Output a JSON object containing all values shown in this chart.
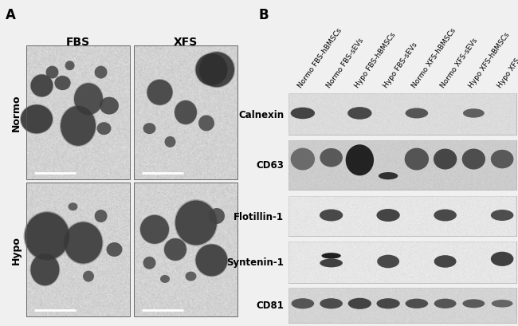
{
  "panel_A_label": "A",
  "panel_B_label": "B",
  "fbs_label": "FBS",
  "xfs_label": "XFS",
  "normo_label": "Normo",
  "hypo_label": "Hypo",
  "col_labels": [
    "Normo FBS-hBMSCs",
    "Normo FBS-sEVs",
    "Hypo FBS-hBMSCs",
    "Hypo FBS-sEVs",
    "Normo XFS-hBMSCs",
    "Normo XFS-sEVs",
    "Hypo XFS-hBMSCs",
    "Hypo XFS-sEVs"
  ],
  "row_labels": [
    "Calnexin",
    "CD63",
    "Flotillin-1",
    "Syntenin-1",
    "CD81"
  ],
  "bg_color": "#f0f0f0",
  "panel_label_fontsize": 12,
  "col_label_fontsize": 6.5,
  "row_label_fontsize": 8.5,
  "em_bg_mean": 0.82,
  "em_bg_std": 0.055,
  "vesicle_color": "#2a2a2a",
  "blot_bg_light": 0.88,
  "blot_bg_dark": 0.72,
  "band_dark": 0.12,
  "band_medium": 0.22,
  "band_light": 0.35
}
